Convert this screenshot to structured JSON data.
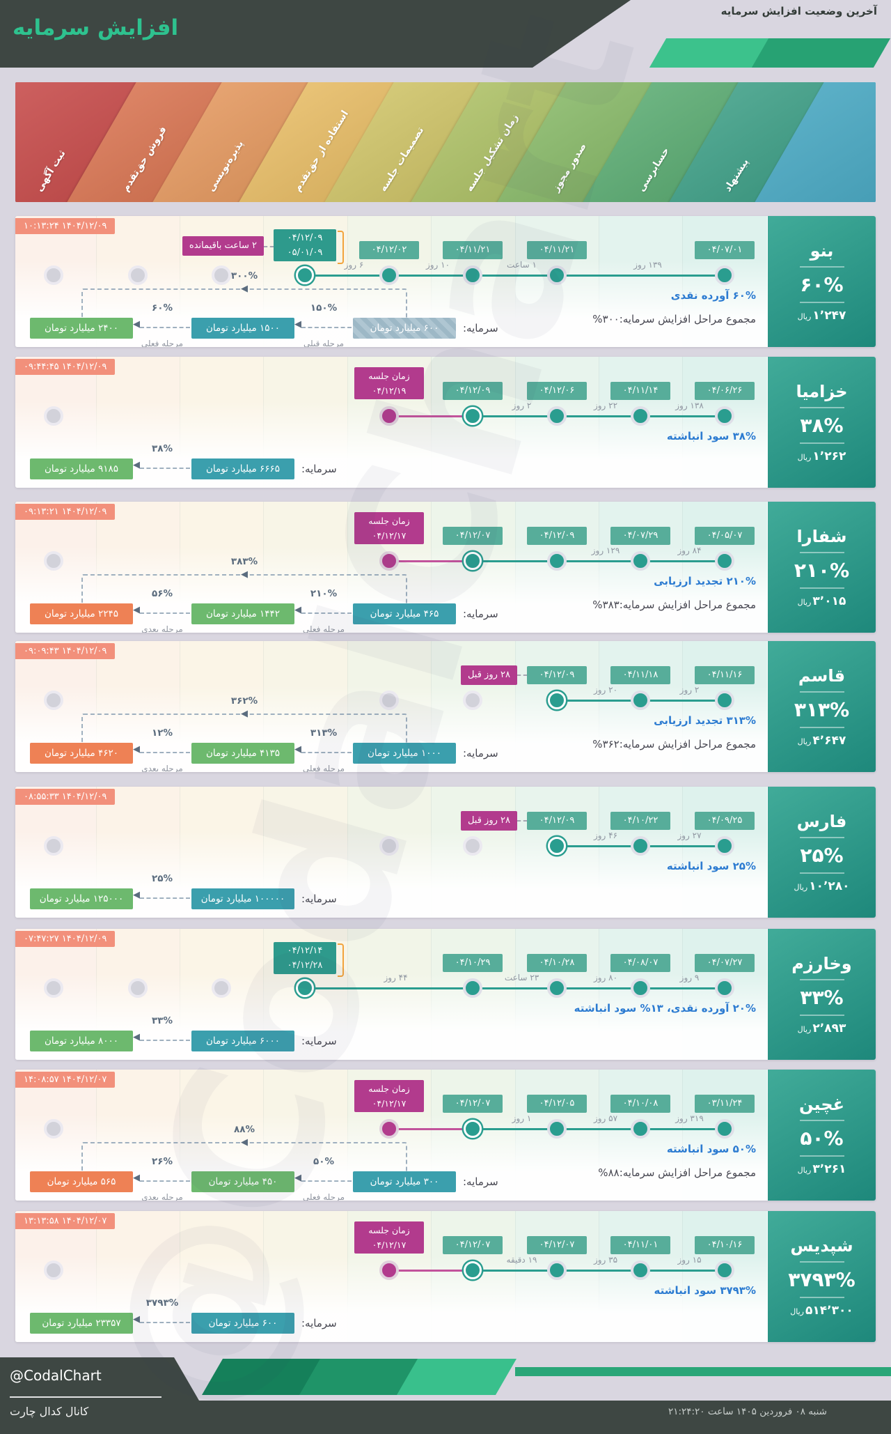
{
  "header": {
    "title": "افزایش سرمایه",
    "subtitle": "آخرین وضعیت افزایش سرمایه"
  },
  "stages": [
    {
      "label": "ثبت آگهی",
      "color": "#c9504f"
    },
    {
      "label": "فروش حق‌تقدم",
      "color": "#d97755"
    },
    {
      "label": "پذیره‌نویسی",
      "color": "#e49a62"
    },
    {
      "label": "استفاده از حق‌تقدم",
      "color": "#e7bd68"
    },
    {
      "label": "تصمیمات جلسه",
      "color": "#cfc46a"
    },
    {
      "label": "زمان تشکیل جلسه",
      "color": "#aec168"
    },
    {
      "label": "صدور مجوز",
      "color": "#8aba6b"
    },
    {
      "label": "حسابرسی",
      "color": "#5ead75"
    },
    {
      "label": "پیشنهاد",
      "color": "#42a189"
    },
    {
      "label": "",
      "color": "#49a7c1"
    }
  ],
  "watermark": "@CodalChart",
  "colors": {
    "accent_green": "#2ec28f",
    "timeline_teal": "#2a9d8f",
    "meeting_purple": "#b23b8d",
    "timestamp_salmon": "#f2907b",
    "note_blue": "#2c7bd1",
    "panel_teal": "#2f9c8d",
    "chain_teal": "#3b9fad",
    "chain_green": "#6db96e",
    "chain_orange": "#ee8155",
    "range_mark_orange": "#f2a33c"
  },
  "footer": {
    "handle": "@CodalChart",
    "channel": "کانال کدال چارت",
    "datetime": "شنبه ۰۸ فروردین ۱۴۰۵ ساعت ۲۱:۲۴:۲۰"
  },
  "rows": [
    {
      "company": "بنو",
      "percent": "۶۰%",
      "price": "۱٬۲۴۷",
      "price_unit": "ریال",
      "timestamp": "۱۴۰۴/۱۲/۰۹ ۱۰:۱۳:۲۴",
      "note_blue": "۶۰% آورده نقدی",
      "note_total": "مجموع مراحل افزایش سرمایه:۳۰۰%",
      "alert": {
        "text": "۲ ساعت باقیمانده"
      },
      "meeting": null,
      "active": {
        "col": 4,
        "dates": [
          "۰۴/۱۲/۰۹",
          "۰۵/۰۱/۰۹"
        ],
        "range_mark": true
      },
      "events": [
        {
          "col": 5,
          "date": "۰۴/۱۲/۰۲"
        },
        {
          "col": 6,
          "date": "۰۴/۱۱/۲۱"
        },
        {
          "col": 7,
          "date": "۰۴/۱۱/۲۱"
        },
        {
          "col": 9,
          "date": "۰۴/۰۷/۰۱"
        }
      ],
      "pending_cols": [
        1,
        2,
        3
      ],
      "durations": [
        {
          "from": 4,
          "to": 5,
          "text": "۶ روز"
        },
        {
          "from": 5,
          "to": 6,
          "text": "۱۰ روز"
        },
        {
          "from": 6,
          "to": 7,
          "text": "۱ ساعت"
        },
        {
          "from": 7,
          "to": 9,
          "text": "۱۳۹ روز"
        }
      ],
      "chain": {
        "label": "سرمایه:",
        "base": {
          "text": "۶۰۰ میلیارد تومان",
          "style": "hatched"
        },
        "steps": [
          {
            "pct": "۱۵۰%",
            "tag": "مرحله قبلی",
            "text": "۱۵۰۰ میلیارد تومان",
            "style": "teal"
          },
          {
            "pct": "۶۰%",
            "tag": "مرحله فعلی",
            "text": "۲۴۰۰ میلیارد تومان",
            "style": "green"
          }
        ],
        "total": "۳۰۰%"
      }
    },
    {
      "company": "خزامیا",
      "percent": "۳۸%",
      "price": "۱٬۲۶۲",
      "price_unit": "ریال",
      "timestamp": "۱۴۰۴/۱۲/۰۹ ۰۹:۴۴:۴۵",
      "note_blue": "۳۸% سود انباشته",
      "note_total": null,
      "alert": null,
      "meeting": {
        "col": 5,
        "title": "زمان جلسه",
        "date": "۰۴/۱۲/۱۹"
      },
      "active": {
        "col": 6,
        "dates": [
          "۰۴/۱۲/۰۹"
        ],
        "range_mark": false
      },
      "events": [
        {
          "col": 7,
          "date": "۰۴/۱۲/۰۶"
        },
        {
          "col": 8,
          "date": "۰۴/۱۱/۱۴"
        },
        {
          "col": 9,
          "date": "۰۴/۰۶/۲۶"
        }
      ],
      "pending_cols": [
        1
      ],
      "durations": [
        {
          "from": 6,
          "to": 7,
          "text": "۲ روز"
        },
        {
          "from": 7,
          "to": 8,
          "text": "۲۲ روز"
        },
        {
          "from": 8,
          "to": 9,
          "text": "۱۳۸ روز"
        }
      ],
      "chain": {
        "label": "سرمایه:",
        "base": {
          "text": "۶۶۶۵ میلیارد تومان",
          "style": "teal"
        },
        "steps": [
          {
            "pct": "۳۸%",
            "tag": null,
            "text": "۹۱۸۵ میلیارد تومان",
            "style": "green"
          }
        ],
        "total": null
      }
    },
    {
      "company": "شفارا",
      "percent": "۲۱۰%",
      "price": "۳٬۰۱۵",
      "price_unit": "ریال",
      "timestamp": "۱۴۰۴/۱۲/۰۹ ۰۹:۱۳:۲۱",
      "note_blue": "۲۱۰% تجدید ارزیابی",
      "note_total": "مجموع مراحل افزایش سرمایه:۳۸۳%",
      "alert": null,
      "meeting": {
        "col": 5,
        "title": "زمان جلسه",
        "date": "۰۴/۱۲/۱۷"
      },
      "active": {
        "col": 6,
        "dates": [
          "۰۴/۱۲/۰۷"
        ],
        "range_mark": false
      },
      "events": [
        {
          "col": 7,
          "date": "۰۴/۱۲/۰۹"
        },
        {
          "col": 8,
          "date": "۰۴/۰۷/۲۹"
        },
        {
          "col": 9,
          "date": "۰۴/۰۵/۰۷"
        }
      ],
      "pending_cols": [
        1
      ],
      "durations": [
        {
          "from": 7,
          "to": 8,
          "text": "۱۲۹ روز"
        },
        {
          "from": 8,
          "to": 9,
          "text": "۸۴ روز"
        }
      ],
      "chain": {
        "label": "سرمایه:",
        "base": {
          "text": "۴۶۵ میلیارد تومان",
          "style": "teal"
        },
        "steps": [
          {
            "pct": "۲۱۰%",
            "tag": "مرحله فعلی",
            "text": "۱۴۴۲ میلیارد تومان",
            "style": "green"
          },
          {
            "pct": "۵۶%",
            "tag": "مرحله بعدی",
            "text": "۲۲۴۵ میلیارد تومان",
            "style": "orange"
          }
        ],
        "total": "۳۸۳%"
      }
    },
    {
      "company": "قاسم",
      "percent": "۳۱۳%",
      "price": "۴٬۶۴۷",
      "price_unit": "ریال",
      "timestamp": "۱۴۰۴/۱۲/۰۹ ۰۹:۰۹:۴۳",
      "note_blue": "۳۱۳% تجدید ارزیابی",
      "note_total": "مجموع مراحل افزایش سرمایه:۳۶۲%",
      "alert": {
        "text": "۲۸ روز قبل"
      },
      "meeting": null,
      "active": {
        "col": 7,
        "dates": [
          "۰۴/۱۲/۰۹"
        ],
        "range_mark": false
      },
      "events": [
        {
          "col": 8,
          "date": "۰۴/۱۱/۱۸"
        },
        {
          "col": 9,
          "date": "۰۴/۱۱/۱۶"
        }
      ],
      "pending_cols": [
        1,
        5,
        6
      ],
      "durations": [
        {
          "from": 7,
          "to": 8,
          "text": "۲۰ روز"
        },
        {
          "from": 8,
          "to": 9,
          "text": "۲ روز"
        }
      ],
      "chain": {
        "label": "سرمایه:",
        "base": {
          "text": "۱۰۰۰ میلیارد تومان",
          "style": "teal"
        },
        "steps": [
          {
            "pct": "۳۱۳%",
            "tag": "مرحله فعلی",
            "text": "۴۱۳۵ میلیارد تومان",
            "style": "green"
          },
          {
            "pct": "۱۲%",
            "tag": "مرحله بعدی",
            "text": "۴۶۲۰ میلیارد تومان",
            "style": "orange"
          }
        ],
        "total": "۳۶۲%"
      }
    },
    {
      "company": "فارس",
      "percent": "۲۵%",
      "price": "۱۰٬۲۸۰",
      "price_unit": "ریال",
      "timestamp": "۱۴۰۴/۱۲/۰۹ ۰۸:۵۵:۳۳",
      "note_blue": "۲۵% سود انباشته",
      "note_total": null,
      "alert": {
        "text": "۲۸ روز قبل"
      },
      "meeting": null,
      "active": {
        "col": 7,
        "dates": [
          "۰۴/۱۲/۰۹"
        ],
        "range_mark": false
      },
      "events": [
        {
          "col": 8,
          "date": "۰۴/۱۰/۲۲"
        },
        {
          "col": 9,
          "date": "۰۴/۰۹/۲۵"
        }
      ],
      "pending_cols": [
        1,
        5,
        6
      ],
      "durations": [
        {
          "from": 7,
          "to": 8,
          "text": "۴۶ روز"
        },
        {
          "from": 8,
          "to": 9,
          "text": "۲۷ روز"
        }
      ],
      "chain": {
        "label": "سرمایه:",
        "base": {
          "text": "۱۰۰۰۰۰ میلیارد تومان",
          "style": "teal"
        },
        "steps": [
          {
            "pct": "۲۵%",
            "tag": null,
            "text": "۱۲۵۰۰۰ میلیارد تومان",
            "style": "green"
          }
        ],
        "total": null
      }
    },
    {
      "company": "وخارزم",
      "percent": "۳۳%",
      "price": "۲٬۸۹۳",
      "price_unit": "ریال",
      "timestamp": "۱۴۰۴/۱۲/۰۹ ۰۷:۴۷:۲۷",
      "note_blue": "۲۰% آورده نقدی، ۱۳% سود انباشته",
      "note_total": null,
      "alert": null,
      "meeting": null,
      "active": {
        "col": 4,
        "dates": [
          "۰۴/۱۲/۱۴",
          "۰۴/۱۲/۲۸"
        ],
        "range_mark": true
      },
      "events": [
        {
          "col": 6,
          "date": "۰۴/۱۰/۲۹"
        },
        {
          "col": 7,
          "date": "۰۴/۱۰/۲۸"
        },
        {
          "col": 8,
          "date": "۰۴/۰۸/۰۷"
        },
        {
          "col": 9,
          "date": "۰۴/۰۷/۲۷"
        }
      ],
      "pending_cols": [
        1,
        2,
        3
      ],
      "durations": [
        {
          "from": 4,
          "to": 6,
          "text": "۴۴ روز"
        },
        {
          "from": 6,
          "to": 7,
          "text": "۲۳ ساعت"
        },
        {
          "from": 7,
          "to": 8,
          "text": "۸۰ روز"
        },
        {
          "from": 8,
          "to": 9,
          "text": "۹ روز"
        }
      ],
      "chain": {
        "label": "سرمایه:",
        "base": {
          "text": "۶۰۰۰ میلیارد تومان",
          "style": "teal"
        },
        "steps": [
          {
            "pct": "۳۳%",
            "tag": null,
            "text": "۸۰۰۰ میلیارد تومان",
            "style": "green"
          }
        ],
        "total": null
      }
    },
    {
      "company": "غچین",
      "percent": "۵۰%",
      "price": "۳٬۲۶۱",
      "price_unit": "ریال",
      "timestamp": "۱۴۰۴/۱۲/۰۷ ۱۴:۰۸:۵۷",
      "note_blue": "۵۰% سود انباشته",
      "note_total": "مجموع مراحل افزایش سرمایه:۸۸%",
      "alert": null,
      "meeting": {
        "col": 5,
        "title": "زمان جلسه",
        "date": "۰۴/۱۲/۱۷"
      },
      "active": {
        "col": 6,
        "dates": [
          "۰۴/۱۲/۰۷"
        ],
        "range_mark": false
      },
      "events": [
        {
          "col": 7,
          "date": "۰۴/۱۲/۰۵"
        },
        {
          "col": 8,
          "date": "۰۴/۱۰/۰۸"
        },
        {
          "col": 9,
          "date": "۰۳/۱۱/۲۴"
        }
      ],
      "pending_cols": [
        1
      ],
      "durations": [
        {
          "from": 6,
          "to": 7,
          "text": "۱ روز"
        },
        {
          "from": 7,
          "to": 8,
          "text": "۵۷ روز"
        },
        {
          "from": 8,
          "to": 9,
          "text": "۳۱۹ روز"
        }
      ],
      "chain": {
        "label": "سرمایه:",
        "base": {
          "text": "۳۰۰ میلیارد تومان",
          "style": "teal"
        },
        "steps": [
          {
            "pct": "۵۰%",
            "tag": "مرحله فعلی",
            "text": "۴۵۰ میلیارد تومان",
            "style": "green"
          },
          {
            "pct": "۲۶%",
            "tag": "مرحله بعدی",
            "text": "۵۶۵ میلیارد تومان",
            "style": "orange"
          }
        ],
        "total": "۸۸%"
      }
    },
    {
      "company": "شپدیس",
      "percent": "۳۷۹۳%",
      "price": "۵۱۴٬۳۰۰",
      "price_unit": "ریال",
      "timestamp": "۱۴۰۴/۱۲/۰۷ ۱۳:۱۳:۵۸",
      "note_blue": "۳۷۹۳% سود انباشته",
      "note_total": null,
      "alert": null,
      "meeting": {
        "col": 5,
        "title": "زمان جلسه",
        "date": "۰۴/۱۲/۱۷"
      },
      "active": {
        "col": 6,
        "dates": [
          "۰۴/۱۲/۰۷"
        ],
        "range_mark": false
      },
      "events": [
        {
          "col": 7,
          "date": "۰۴/۱۲/۰۷"
        },
        {
          "col": 8,
          "date": "۰۴/۱۱/۰۱"
        },
        {
          "col": 9,
          "date": "۰۴/۱۰/۱۶"
        }
      ],
      "pending_cols": [
        1
      ],
      "durations": [
        {
          "from": 6,
          "to": 7,
          "text": "۱۹ دقیقه"
        },
        {
          "from": 7,
          "to": 8,
          "text": "۳۵ روز"
        },
        {
          "from": 8,
          "to": 9,
          "text": "۱۵ روز"
        }
      ],
      "chain": {
        "label": "سرمایه:",
        "base": {
          "text": "۶۰۰ میلیارد تومان",
          "style": "teal"
        },
        "steps": [
          {
            "pct": "۳۷۹۳%",
            "tag": null,
            "text": "۲۳۳۵۷ میلیارد تومان",
            "style": "green"
          }
        ],
        "total": null
      }
    }
  ]
}
